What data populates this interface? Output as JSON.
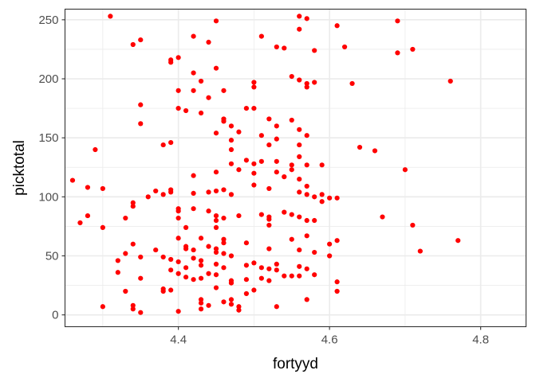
{
  "chart_data": {
    "type": "scatter",
    "title": "",
    "xlabel": "fortyyd",
    "ylabel": "picktotal",
    "xlim": [
      4.25,
      4.86
    ],
    "ylim": [
      -10,
      259
    ],
    "x_ticks": [
      4.4,
      4.6,
      4.8
    ],
    "x_tick_labels": [
      "4.4",
      "4.6",
      "4.8"
    ],
    "x_minor_ticks": [
      4.3,
      4.5,
      4.7
    ],
    "y_ticks": [
      0,
      50,
      100,
      150,
      200,
      250
    ],
    "y_tick_labels": [
      "0",
      "50",
      "100",
      "150",
      "200",
      "250"
    ],
    "y_minor_ticks": [
      25,
      75,
      125,
      175,
      225
    ],
    "grid": true,
    "theme": "bw",
    "point_color": "#ff0000",
    "points": [
      [
        4.31,
        253
      ],
      [
        4.56,
        253
      ],
      [
        4.57,
        251
      ],
      [
        4.45,
        249
      ],
      [
        4.69,
        249
      ],
      [
        4.61,
        245
      ],
      [
        4.56,
        242
      ],
      [
        4.51,
        236
      ],
      [
        4.42,
        236
      ],
      [
        4.35,
        233
      ],
      [
        4.34,
        229
      ],
      [
        4.44,
        231
      ],
      [
        4.53,
        227
      ],
      [
        4.54,
        226
      ],
      [
        4.62,
        227
      ],
      [
        4.58,
        224
      ],
      [
        4.69,
        222
      ],
      [
        4.71,
        225
      ],
      [
        4.4,
        218
      ],
      [
        4.39,
        216
      ],
      [
        4.39,
        214
      ],
      [
        4.42,
        205
      ],
      [
        4.45,
        209
      ],
      [
        4.43,
        198
      ],
      [
        4.55,
        202
      ],
      [
        4.56,
        199
      ],
      [
        4.57,
        196
      ],
      [
        4.58,
        197
      ],
      [
        4.57,
        193
      ],
      [
        4.5,
        197
      ],
      [
        4.5,
        193
      ],
      [
        4.76,
        198
      ],
      [
        4.63,
        196
      ],
      [
        4.4,
        190
      ],
      [
        4.42,
        190
      ],
      [
        4.46,
        190
      ],
      [
        4.44,
        184
      ],
      [
        4.35,
        178
      ],
      [
        4.4,
        175
      ],
      [
        4.41,
        173
      ],
      [
        4.43,
        171
      ],
      [
        4.49,
        175
      ],
      [
        4.5,
        175
      ],
      [
        4.47,
        160
      ],
      [
        4.46,
        164
      ],
      [
        4.46,
        166
      ],
      [
        4.52,
        166
      ],
      [
        4.55,
        165
      ],
      [
        4.35,
        162
      ],
      [
        4.53,
        160
      ],
      [
        4.56,
        157
      ],
      [
        4.48,
        155
      ],
      [
        4.51,
        152
      ],
      [
        4.45,
        154
      ],
      [
        4.57,
        152
      ],
      [
        4.53,
        149
      ],
      [
        4.47,
        148
      ],
      [
        4.38,
        144
      ],
      [
        4.39,
        146
      ],
      [
        4.52,
        144
      ],
      [
        4.56,
        144
      ],
      [
        4.47,
        140
      ],
      [
        4.64,
        142
      ],
      [
        4.66,
        139
      ],
      [
        4.29,
        140
      ],
      [
        4.51,
        130
      ],
      [
        4.5,
        128
      ],
      [
        4.49,
        131
      ],
      [
        4.47,
        128
      ],
      [
        4.48,
        123
      ],
      [
        4.53,
        130
      ],
      [
        4.55,
        127
      ],
      [
        4.55,
        123
      ],
      [
        4.56,
        134
      ],
      [
        4.57,
        127
      ],
      [
        4.59,
        127
      ],
      [
        4.42,
        118
      ],
      [
        4.45,
        121
      ],
      [
        4.5,
        120
      ],
      [
        4.53,
        121
      ],
      [
        4.26,
        114
      ],
      [
        4.54,
        117
      ],
      [
        4.56,
        115
      ],
      [
        4.7,
        123
      ],
      [
        4.5,
        110
      ],
      [
        4.28,
        108
      ],
      [
        4.3,
        107
      ],
      [
        4.37,
        105
      ],
      [
        4.39,
        106
      ],
      [
        4.39,
        104
      ],
      [
        4.38,
        102
      ],
      [
        4.42,
        103
      ],
      [
        4.44,
        104
      ],
      [
        4.45,
        105
      ],
      [
        4.46,
        106
      ],
      [
        4.47,
        102
      ],
      [
        4.52,
        107
      ],
      [
        4.56,
        104
      ],
      [
        4.57,
        109
      ],
      [
        4.57,
        102
      ],
      [
        4.58,
        100
      ],
      [
        4.59,
        102
      ],
      [
        4.6,
        99
      ],
      [
        4.61,
        99
      ],
      [
        4.59,
        96
      ],
      [
        4.36,
        100
      ],
      [
        4.34,
        95
      ],
      [
        4.34,
        92
      ],
      [
        4.4,
        90
      ],
      [
        4.4,
        88
      ],
      [
        4.42,
        90
      ],
      [
        4.44,
        88
      ],
      [
        4.45,
        84
      ],
      [
        4.45,
        80
      ],
      [
        4.46,
        82
      ],
      [
        4.48,
        84
      ],
      [
        4.51,
        85
      ],
      [
        4.52,
        83
      ],
      [
        4.52,
        81
      ],
      [
        4.54,
        87
      ],
      [
        4.55,
        85
      ],
      [
        4.56,
        83
      ],
      [
        4.57,
        80
      ],
      [
        4.58,
        80
      ],
      [
        4.67,
        83
      ],
      [
        4.28,
        84
      ],
      [
        4.33,
        82
      ],
      [
        4.4,
        82
      ],
      [
        4.27,
        78
      ],
      [
        4.3,
        74
      ],
      [
        4.41,
        74
      ],
      [
        4.45,
        74
      ],
      [
        4.52,
        76
      ],
      [
        4.71,
        76
      ],
      [
        4.4,
        65
      ],
      [
        4.43,
        65
      ],
      [
        4.46,
        64
      ],
      [
        4.46,
        61
      ],
      [
        4.49,
        61
      ],
      [
        4.55,
        64
      ],
      [
        4.57,
        67
      ],
      [
        4.6,
        60
      ],
      [
        4.61,
        63
      ],
      [
        4.77,
        63
      ],
      [
        4.34,
        60
      ],
      [
        4.41,
        58
      ],
      [
        4.41,
        56
      ],
      [
        4.44,
        58
      ],
      [
        4.45,
        56
      ],
      [
        4.37,
        55
      ],
      [
        4.42,
        55
      ],
      [
        4.45,
        53
      ],
      [
        4.46,
        52
      ],
      [
        4.52,
        56
      ],
      [
        4.56,
        55
      ],
      [
        4.58,
        53
      ],
      [
        4.72,
        54
      ],
      [
        4.33,
        52
      ],
      [
        4.35,
        49
      ],
      [
        4.38,
        49
      ],
      [
        4.39,
        47
      ],
      [
        4.42,
        48
      ],
      [
        4.43,
        46
      ],
      [
        4.45,
        43
      ],
      [
        4.47,
        50
      ],
      [
        4.5,
        44
      ],
      [
        4.51,
        40
      ],
      [
        4.52,
        39
      ],
      [
        4.53,
        43
      ],
      [
        4.56,
        41
      ],
      [
        4.57,
        39
      ],
      [
        4.6,
        50
      ],
      [
        4.32,
        46
      ],
      [
        4.32,
        36
      ],
      [
        4.4,
        45
      ],
      [
        4.41,
        40
      ],
      [
        4.43,
        42
      ],
      [
        4.46,
        40
      ],
      [
        4.49,
        42
      ],
      [
        4.53,
        38
      ],
      [
        4.55,
        33
      ],
      [
        4.56,
        33
      ],
      [
        4.58,
        34
      ],
      [
        4.39,
        38
      ],
      [
        4.4,
        35
      ],
      [
        4.41,
        32
      ],
      [
        4.42,
        30
      ],
      [
        4.43,
        31
      ],
      [
        4.44,
        35
      ],
      [
        4.45,
        34
      ],
      [
        4.47,
        29
      ],
      [
        4.49,
        30
      ],
      [
        4.51,
        31
      ],
      [
        4.52,
        29
      ],
      [
        4.54,
        33
      ],
      [
        4.35,
        31
      ],
      [
        4.38,
        22
      ],
      [
        4.38,
        20
      ],
      [
        4.39,
        21
      ],
      [
        4.33,
        20
      ],
      [
        4.43,
        13
      ],
      [
        4.43,
        10
      ],
      [
        4.43,
        5
      ],
      [
        4.4,
        3
      ],
      [
        4.44,
        8
      ],
      [
        4.46,
        11
      ],
      [
        4.47,
        13
      ],
      [
        4.48,
        4
      ],
      [
        4.48,
        7
      ],
      [
        4.47,
        9
      ],
      [
        4.53,
        7
      ],
      [
        4.3,
        7
      ],
      [
        4.34,
        8
      ],
      [
        4.34,
        5
      ],
      [
        4.35,
        2
      ],
      [
        4.57,
        13
      ],
      [
        4.61,
        20
      ],
      [
        4.61,
        28
      ],
      [
        4.49,
        18
      ],
      [
        4.45,
        23
      ],
      [
        4.5,
        21
      ],
      [
        4.47,
        27
      ]
    ]
  }
}
